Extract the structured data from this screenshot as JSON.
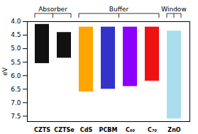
{
  "chart_data": {
    "type": "bar",
    "categories": [
      "CZTS",
      "CZTSe",
      "CdS",
      "PCBM",
      "C₆₀",
      "C₇₀",
      "ZnO"
    ],
    "values": [
      [
        4.1,
        5.55
      ],
      [
        4.4,
        5.35
      ],
      [
        4.2,
        6.6
      ],
      [
        4.2,
        6.5
      ],
      [
        4.2,
        6.4
      ],
      [
        4.2,
        6.2
      ],
      [
        4.35,
        7.6
      ]
    ],
    "colors": [
      "#111111",
      "#111111",
      "#FFA500",
      "#3333CC",
      "#8B00FF",
      "#EE1111",
      "#AADDEE"
    ],
    "ylabel": "eV",
    "ylim": [
      7.7,
      4.0
    ],
    "yticks": [
      {
        "value": 4.0,
        "label": "4.0"
      },
      4.5,
      {
        "value": 5.0,
        "label": "5.0"
      },
      5.5,
      {
        "value": 6.0,
        "label": "6.0"
      },
      6.5,
      {
        "value": 7.0,
        "label": "7.0"
      },
      7.5
    ],
    "groups": [
      {
        "label": "Absorber",
        "categories": [
          "CZTS",
          "CZTSe"
        ]
      },
      {
        "label": "Buffer",
        "categories": [
          "CdS",
          "PCBM",
          "C₆₀",
          "C₇₀"
        ]
      },
      {
        "label": "Window",
        "categories": [
          "ZnO"
        ]
      }
    ]
  }
}
